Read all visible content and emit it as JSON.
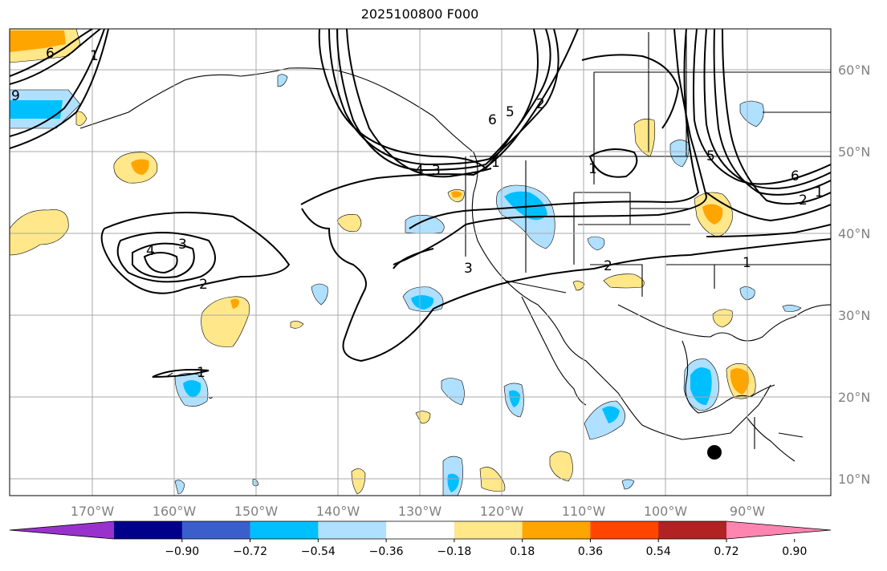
{
  "title": "2025100800 F000",
  "longitude_labels": [
    "170°W",
    "160°W",
    "150°W",
    "140°W",
    "130°W",
    "120°W",
    "110°W",
    "100°W",
    "90°W"
  ],
  "latitude_labels": [
    "60°N",
    "50°N",
    "40°N",
    "30°N",
    "20°N",
    "10°N"
  ],
  "colorbar": {
    "ticks": [
      "−0.90",
      "−0.72",
      "−0.54",
      "−0.36",
      "−0.18",
      "0.18",
      "0.36",
      "0.54",
      "0.72",
      "0.90"
    ],
    "colors": [
      "#9932cc",
      "#00008b",
      "#3a5fcd",
      "#00bfff",
      "#b0e0ff",
      "#ffffff",
      "#ffe78a",
      "#ffa500",
      "#ff4500",
      "#b22222",
      "#ff85b0"
    ]
  },
  "contour_labels": [
    "6",
    "1",
    "9",
    "4",
    "3",
    "2",
    "4",
    "3",
    "6",
    "5",
    "2",
    "1",
    "1",
    "3",
    "2",
    "1",
    "5",
    "6",
    "2",
    "1",
    "1"
  ],
  "marker": "storm-location"
}
